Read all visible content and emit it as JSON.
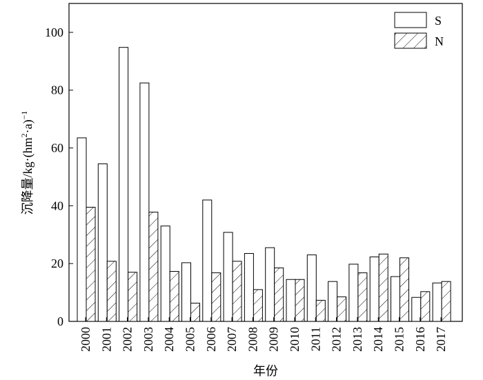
{
  "chart_data": {
    "type": "bar",
    "title": "",
    "xlabel": "年份",
    "ylabel_main": "沉降量/kg·(hm",
    "ylabel_sup1": "2",
    "ylabel_mid": "·a)",
    "ylabel_sup2": "−1",
    "ylim": [
      0,
      110
    ],
    "yticks": [
      0,
      20,
      40,
      60,
      80,
      100
    ],
    "grid": false,
    "legend_position": "top-right",
    "categories": [
      "2000",
      "2001",
      "2002",
      "2003",
      "2004",
      "2005",
      "2006",
      "2007",
      "2008",
      "2009",
      "2010",
      "2011",
      "2012",
      "2013",
      "2014",
      "2015",
      "2016",
      "2017"
    ],
    "series": [
      {
        "name": "S",
        "pattern": "none",
        "values": [
          63.5,
          54.5,
          94.8,
          82.5,
          33.0,
          20.3,
          42.0,
          30.8,
          23.5,
          25.5,
          14.5,
          23.0,
          13.8,
          19.8,
          22.3,
          15.5,
          8.3,
          13.3
        ]
      },
      {
        "name": "N",
        "pattern": "hatch",
        "values": [
          39.5,
          20.8,
          17.0,
          37.8,
          17.3,
          6.3,
          16.8,
          20.8,
          11.0,
          18.5,
          14.5,
          7.3,
          8.5,
          16.8,
          23.3,
          22.0,
          10.3,
          13.8
        ]
      }
    ],
    "colors": {
      "bar_fill": "#ffffff",
      "stroke": "#000000"
    }
  }
}
